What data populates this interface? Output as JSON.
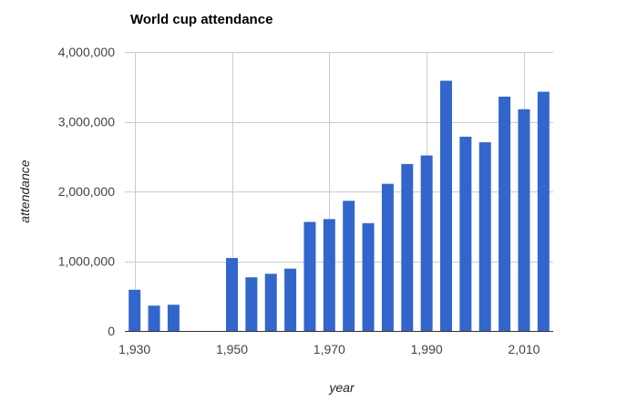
{
  "chart_data": {
    "type": "bar",
    "title": "World cup attendance",
    "xlabel": "year",
    "ylabel": "attendance",
    "x": [
      1930,
      1934,
      1938,
      1950,
      1954,
      1958,
      1962,
      1966,
      1970,
      1974,
      1978,
      1982,
      1986,
      1990,
      1994,
      1998,
      2002,
      2006,
      2010,
      2014
    ],
    "values": [
      590549,
      363000,
      375700,
      1045246,
      768607,
      819810,
      893172,
      1563135,
      1603975,
      1865753,
      1545791,
      2109723,
      2394031,
      2516215,
      3587538,
      2785100,
      2705197,
      3359439,
      3178856,
      3429873
    ],
    "xlim": [
      1928,
      2016
    ],
    "ylim": [
      0,
      4000000
    ],
    "x_ticks": [
      1930,
      1950,
      1970,
      1990,
      2010
    ],
    "x_tick_labels": [
      "1,930",
      "1,950",
      "1,970",
      "1,990",
      "2,010"
    ],
    "y_ticks": [
      0,
      1000000,
      2000000,
      3000000,
      4000000
    ],
    "y_tick_labels": [
      "0",
      "1,000,000",
      "2,000,000",
      "3,000,000",
      "4,000,000"
    ],
    "bar_color": "#3366cc",
    "grid": true,
    "legend": "none"
  }
}
